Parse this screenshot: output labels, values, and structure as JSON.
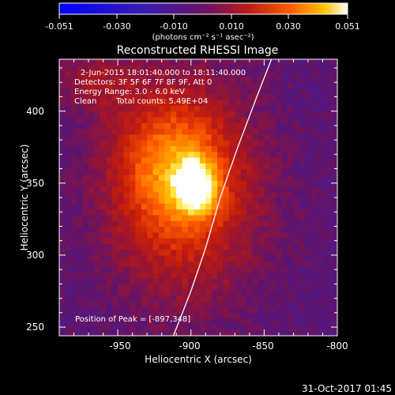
{
  "colorbar": {
    "ticks": [
      "-0.051",
      "-0.030",
      "-0.010",
      "0.010",
      "0.030",
      "0.051"
    ],
    "unit_label": "(photons cm⁻² s⁻¹ asec⁻²)",
    "range": [
      -0.051,
      0.051
    ]
  },
  "title": "Reconstructed RHESSI Image",
  "info": {
    "line1": "2-Jun-2015 18:01:40.000 to 18:11:40.000",
    "line2": "Detectors: 3F 5F 6F 7F 8F 9F, Att 0",
    "line3": "Energy Range: 3.0 - 6.0 keV",
    "line4_a": "Clean",
    "line4_b": "Total counts: 5.49E+04"
  },
  "peak_label": "Position of Peak = [-897,348]",
  "footer_date": "31-Oct-2017 01:45",
  "colors": {
    "background": "#000000",
    "limb": "#ffffff",
    "text": "#ffffff"
  },
  "chart_data": {
    "type": "heatmap",
    "xlabel": "Heliocentric X (arcsec)",
    "ylabel": "Heliocentric Y (arcsec)",
    "xlim": [
      -990,
      -800
    ],
    "ylim": [
      244,
      436
    ],
    "xticks": [
      -950,
      -900,
      -850,
      -800
    ],
    "xtick_labels": [
      "-950",
      "-900",
      "-850",
      "-800"
    ],
    "yticks": [
      250,
      300,
      350,
      400
    ],
    "ytick_labels": [
      "250",
      "300",
      "350",
      "400"
    ],
    "colormap": "RHESSI blue-purple-red-yellow-white",
    "peak": {
      "x": -897,
      "y": 348
    },
    "sources": [
      {
        "x": -897,
        "y": 348,
        "sx": 9,
        "sy": 12,
        "amp": 0.051
      },
      {
        "x": -905,
        "y": 345,
        "sx": 35,
        "sy": 50,
        "amp": 0.03
      },
      {
        "x": -915,
        "y": 365,
        "sx": 25,
        "sy": 30,
        "amp": 0.018
      },
      {
        "x": -965,
        "y": 420,
        "sx": 20,
        "sy": 14,
        "amp": 0.012
      }
    ],
    "background_level": -0.01,
    "limb_curve": [
      [
        -912,
        244
      ],
      [
        -900,
        275
      ],
      [
        -890,
        305
      ],
      [
        -880,
        340
      ],
      [
        -868,
        375
      ],
      [
        -855,
        410
      ],
      [
        -845,
        436
      ]
    ]
  }
}
